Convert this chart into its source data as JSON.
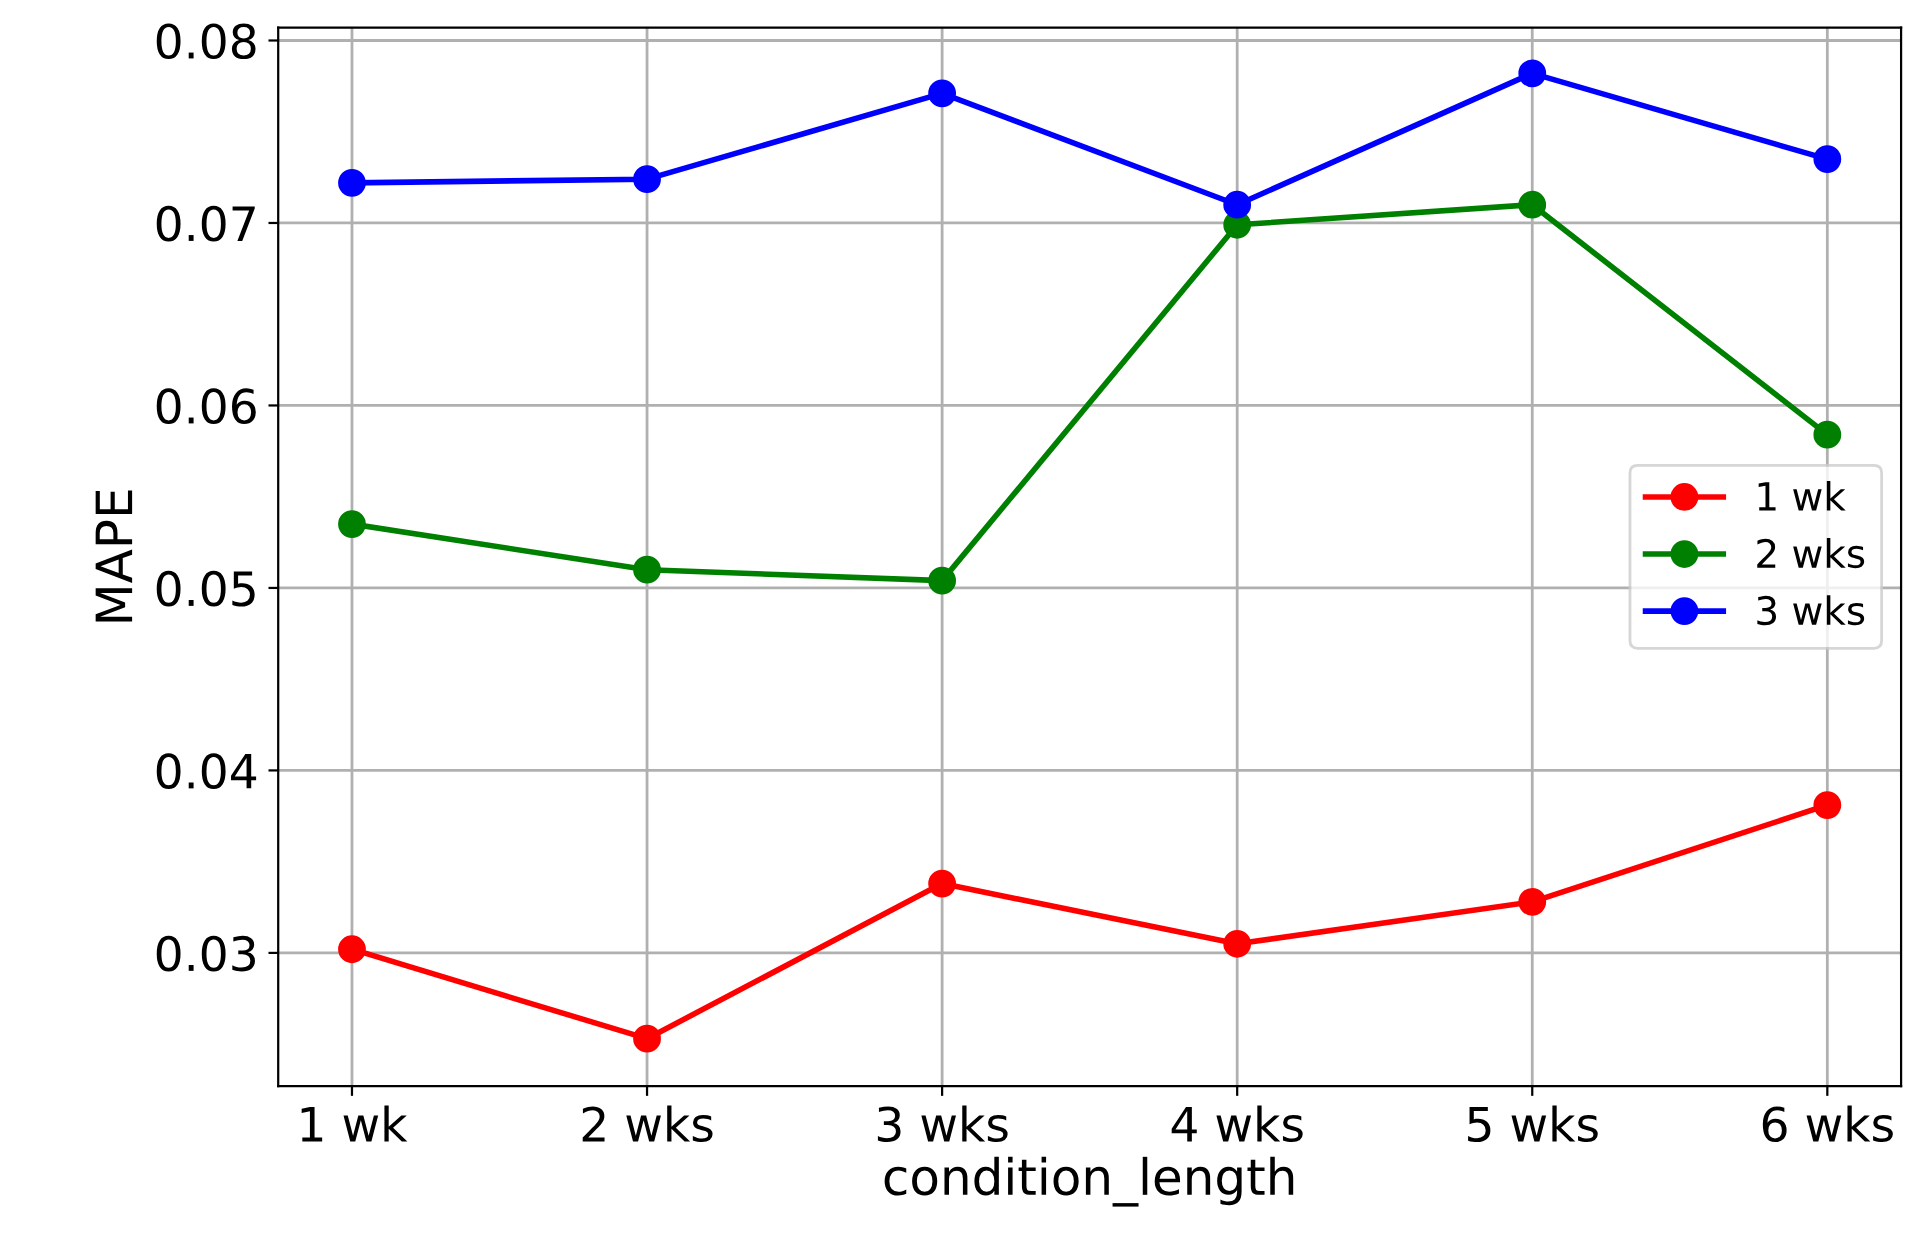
{
  "chart_data": {
    "type": "line",
    "xlabel": "condition_length",
    "ylabel": "MAPE",
    "categories": [
      "1 wk",
      "2 wks",
      "3 wks",
      "4 wks",
      "5 wks",
      "6 wks"
    ],
    "series": [
      {
        "name": "1 wk",
        "color": "#ff0000",
        "values": [
          0.0302,
          0.0253,
          0.0338,
          0.0305,
          0.0328,
          0.0381
        ]
      },
      {
        "name": "2 wks",
        "color": "#008000",
        "values": [
          0.0535,
          0.051,
          0.0504,
          0.0699,
          0.071,
          0.0584
        ]
      },
      {
        "name": "3 wks",
        "color": "#0000ff",
        "values": [
          0.0722,
          0.0724,
          0.0771,
          0.071,
          0.0782,
          0.0735
        ]
      }
    ],
    "ylim": [
      0.0227,
      0.0807
    ],
    "yticks": [
      {
        "value": 0.03,
        "label": "0.03"
      },
      {
        "value": 0.04,
        "label": "0.04"
      },
      {
        "value": 0.05,
        "label": "0.05"
      },
      {
        "value": 0.06,
        "label": "0.06"
      },
      {
        "value": 0.07,
        "label": "0.07"
      },
      {
        "value": 0.08,
        "label": "0.08"
      }
    ],
    "grid": true,
    "legend": "center right",
    "marker": "circle",
    "line_style": "solid"
  }
}
